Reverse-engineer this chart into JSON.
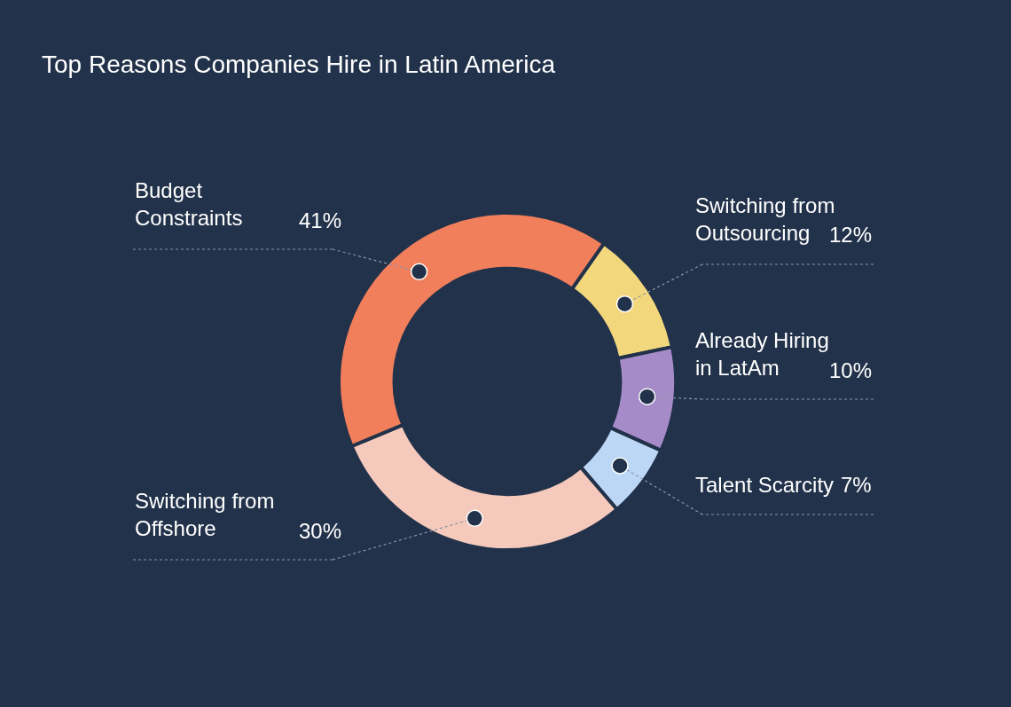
{
  "chart_data": {
    "type": "donut",
    "title": "Top Reasons Companies Hire in Latin America",
    "categories": [
      "Switching from Outsourcing",
      "Already Hiring in LatAm",
      "Talent Scarcity",
      "Switching from Offshore",
      "Budget Constraints"
    ],
    "values": [
      12,
      10,
      7,
      30,
      41
    ],
    "value_labels": [
      "12%",
      "10%",
      "7%",
      "30%",
      "41%"
    ],
    "colors": [
      "#f3d77d",
      "#a58cc8",
      "#bcd7f5",
      "#f5c9bb",
      "#f27f5c"
    ],
    "legend": false
  }
}
